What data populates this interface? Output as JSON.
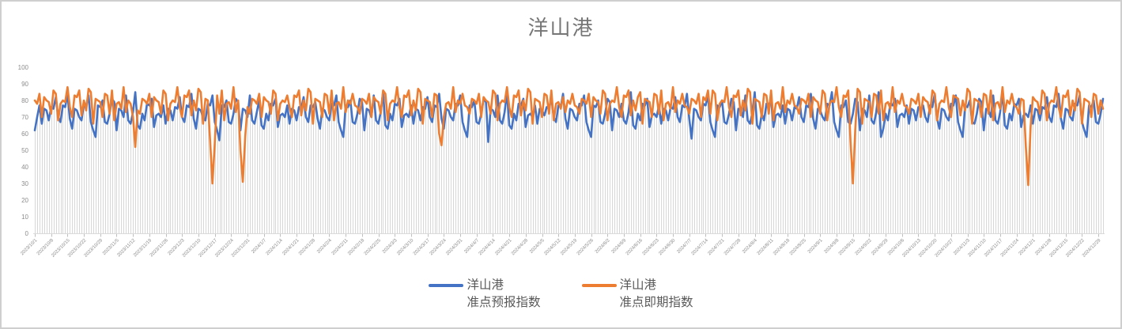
{
  "chart_data": {
    "type": "line",
    "title": "洋山港",
    "ylim": [
      0,
      100
    ],
    "y_ticks": [
      0,
      10,
      20,
      30,
      40,
      50,
      60,
      70,
      80,
      90,
      100
    ],
    "x_label_every_n_points": 7,
    "x_labels": [
      "2023/10/1",
      "2023/10/8",
      "2023/10/15",
      "2023/10/22",
      "2023/10/29",
      "2023/11/5",
      "2023/11/12",
      "2023/11/19",
      "2023/11/26",
      "2023/12/3",
      "2023/12/10",
      "2023/12/17",
      "2023/12/24",
      "2023/12/31",
      "2024/1/7",
      "2024/1/14",
      "2024/1/21",
      "2024/1/28",
      "2024/2/4",
      "2024/2/11",
      "2024/2/18",
      "2024/2/25",
      "2024/3/3",
      "2024/3/10",
      "2024/3/17",
      "2024/3/24",
      "2024/3/31",
      "2024/4/7",
      "2024/4/14",
      "2024/4/21",
      "2024/4/28",
      "2024/5/5",
      "2024/5/12",
      "2024/5/19",
      "2024/5/26",
      "2024/6/2",
      "2024/6/9",
      "2024/6/16",
      "2024/6/23",
      "2024/6/30",
      "2024/7/7",
      "2024/7/14",
      "2024/7/21",
      "2024/7/28",
      "2024/8/4",
      "2024/8/11",
      "2024/8/18",
      "2024/8/25",
      "2024/9/1",
      "2024/9/8",
      "2024/9/15",
      "2024/9/22",
      "2024/9/29",
      "2024/10/6",
      "2024/10/13",
      "2024/10/20",
      "2024/10/27",
      "2024/11/3",
      "2024/11/10",
      "2024/11/17",
      "2024/11/24",
      "2024/12/1",
      "2024/12/8",
      "2024/12/15",
      "2024/12/22",
      "2024/12/29"
    ],
    "grid": "vertical-droplines-per-day",
    "legend_position": "bottom",
    "series": [
      {
        "name": "洋山港 准点预报指数",
        "color": "#4472C4",
        "values": [
          62,
          70,
          77,
          66,
          75,
          74,
          68,
          76,
          75,
          82,
          70,
          67,
          77,
          76,
          84,
          69,
          63,
          75,
          74,
          70,
          68,
          78,
          77,
          83,
          67,
          62,
          58,
          77,
          76,
          80,
          67,
          66,
          72,
          81,
          79,
          62,
          75,
          74,
          70,
          83,
          68,
          66,
          73,
          85,
          65,
          63,
          72,
          68,
          78,
          77,
          81,
          64,
          71,
          72,
          70,
          77,
          66,
          75,
          74,
          68,
          76,
          75,
          82,
          70,
          67,
          77,
          76,
          84,
          69,
          63,
          75,
          74,
          70,
          68,
          78,
          77,
          83,
          67,
          62,
          56,
          77,
          76,
          80,
          67,
          66,
          72,
          81,
          79,
          62,
          75,
          74,
          70,
          83,
          68,
          66,
          73,
          80,
          65,
          63,
          72,
          68,
          78,
          77,
          81,
          64,
          71,
          72,
          70,
          77,
          66,
          75,
          74,
          68,
          76,
          75,
          82,
          70,
          67,
          77,
          76,
          79,
          69,
          63,
          75,
          74,
          70,
          68,
          78,
          77,
          83,
          67,
          62,
          58,
          77,
          76,
          80,
          67,
          66,
          72,
          81,
          79,
          62,
          75,
          74,
          70,
          83,
          68,
          66,
          73,
          85,
          65,
          63,
          72,
          68,
          78,
          77,
          81,
          64,
          71,
          72,
          70,
          77,
          66,
          75,
          74,
          68,
          76,
          75,
          82,
          70,
          67,
          77,
          76,
          84,
          69,
          63,
          75,
          74,
          70,
          68,
          78,
          77,
          83,
          67,
          62,
          58,
          77,
          76,
          80,
          67,
          66,
          72,
          81,
          79,
          55,
          75,
          74,
          70,
          83,
          68,
          66,
          73,
          85,
          65,
          63,
          72,
          68,
          78,
          77,
          81,
          64,
          71,
          72,
          70,
          77,
          66,
          75,
          74,
          71,
          76,
          75,
          82,
          70,
          67,
          77,
          76,
          84,
          69,
          63,
          75,
          74,
          70,
          68,
          78,
          77,
          83,
          67,
          62,
          58,
          77,
          76,
          80,
          67,
          66,
          72,
          81,
          79,
          62,
          75,
          74,
          70,
          78,
          68,
          66,
          73,
          85,
          65,
          63,
          72,
          68,
          78,
          77,
          81,
          64,
          71,
          72,
          70,
          77,
          66,
          75,
          74,
          68,
          76,
          75,
          82,
          70,
          67,
          77,
          76,
          84,
          69,
          57,
          75,
          74,
          70,
          68,
          78,
          77,
          83,
          67,
          62,
          58,
          77,
          76,
          80,
          67,
          66,
          72,
          81,
          79,
          62,
          75,
          74,
          70,
          83,
          68,
          66,
          73,
          85,
          65,
          63,
          72,
          68,
          78,
          77,
          81,
          64,
          71,
          72,
          70,
          77,
          66,
          75,
          74,
          68,
          76,
          75,
          82,
          70,
          67,
          77,
          76,
          84,
          69,
          63,
          75,
          74,
          70,
          68,
          78,
          77,
          85,
          67,
          62,
          58,
          77,
          76,
          80,
          67,
          66,
          72,
          81,
          79,
          62,
          75,
          74,
          70,
          83,
          68,
          66,
          73,
          85,
          58,
          63,
          72,
          68,
          78,
          77,
          81,
          64,
          71,
          72,
          70,
          77,
          66,
          75,
          74,
          68,
          76,
          75,
          77,
          70,
          67,
          77,
          76,
          84,
          69,
          63,
          75,
          74,
          70,
          68,
          78,
          77,
          83,
          67,
          62,
          58,
          77,
          76,
          80,
          67,
          66,
          72,
          81,
          79,
          62,
          75,
          74,
          70,
          83,
          68,
          66,
          73,
          85,
          65,
          63,
          72,
          68,
          78,
          77,
          81,
          64,
          71,
          72,
          70,
          77,
          66,
          75,
          74,
          68,
          76,
          75,
          82,
          70,
          67,
          77,
          76,
          84,
          69,
          63,
          75,
          74,
          70,
          68,
          78,
          77,
          83,
          67,
          62,
          58,
          77,
          76,
          80,
          67,
          66,
          72,
          81
        ]
      },
      {
        "name": "洋山港 准点即期指数",
        "color": "#ED7D31",
        "values": [
          80,
          78,
          84,
          70,
          82,
          80,
          79,
          72,
          86,
          84,
          68,
          78,
          80,
          79,
          88,
          76,
          70,
          83,
          82,
          86,
          71,
          80,
          74,
          87,
          85,
          66,
          81,
          80,
          79,
          70,
          84,
          83,
          72,
          86,
          68,
          78,
          79,
          75,
          88,
          73,
          80,
          78,
          70,
          52,
          74,
          72,
          81,
          80,
          78,
          84,
          70,
          82,
          80,
          79,
          72,
          86,
          84,
          68,
          78,
          80,
          79,
          88,
          76,
          70,
          83,
          82,
          86,
          71,
          80,
          74,
          87,
          85,
          66,
          81,
          80,
          56,
          30,
          54,
          83,
          72,
          86,
          68,
          78,
          79,
          75,
          88,
          73,
          80,
          50,
          31,
          58,
          76,
          72,
          81,
          80,
          78,
          84,
          70,
          82,
          80,
          79,
          72,
          86,
          84,
          68,
          78,
          80,
          79,
          83,
          76,
          70,
          83,
          82,
          86,
          71,
          80,
          74,
          87,
          85,
          66,
          81,
          80,
          79,
          70,
          84,
          83,
          72,
          86,
          68,
          78,
          79,
          75,
          88,
          73,
          80,
          78,
          84,
          77,
          76,
          72,
          81,
          80,
          78,
          84,
          70,
          82,
          80,
          79,
          72,
          86,
          84,
          68,
          78,
          80,
          79,
          88,
          76,
          70,
          83,
          82,
          86,
          71,
          80,
          74,
          87,
          85,
          66,
          81,
          80,
          79,
          70,
          84,
          83,
          60,
          53,
          70,
          78,
          79,
          75,
          88,
          73,
          80,
          78,
          84,
          77,
          76,
          72,
          81,
          80,
          78,
          84,
          70,
          82,
          80,
          79,
          72,
          86,
          84,
          68,
          78,
          80,
          79,
          88,
          76,
          70,
          83,
          82,
          86,
          71,
          80,
          74,
          87,
          85,
          66,
          81,
          80,
          79,
          70,
          84,
          83,
          72,
          86,
          68,
          78,
          79,
          75,
          82,
          73,
          80,
          78,
          84,
          77,
          76,
          72,
          81,
          80,
          78,
          84,
          70,
          82,
          80,
          79,
          72,
          86,
          84,
          68,
          78,
          80,
          79,
          88,
          76,
          70,
          83,
          82,
          86,
          71,
          80,
          74,
          82,
          85,
          66,
          81,
          80,
          79,
          70,
          84,
          83,
          72,
          86,
          68,
          78,
          79,
          75,
          88,
          73,
          80,
          78,
          84,
          77,
          76,
          72,
          81,
          80,
          78,
          84,
          70,
          82,
          80,
          86,
          72,
          86,
          84,
          68,
          78,
          80,
          79,
          88,
          76,
          70,
          83,
          82,
          86,
          71,
          80,
          74,
          87,
          85,
          66,
          81,
          80,
          79,
          70,
          84,
          83,
          72,
          86,
          68,
          78,
          79,
          75,
          88,
          73,
          80,
          78,
          84,
          77,
          76,
          72,
          81,
          80,
          78,
          84,
          70,
          82,
          80,
          79,
          72,
          86,
          84,
          68,
          78,
          80,
          79,
          88,
          76,
          70,
          83,
          82,
          86,
          55,
          30,
          62,
          87,
          85,
          66,
          81,
          80,
          79,
          70,
          84,
          83,
          72,
          86,
          68,
          78,
          79,
          75,
          88,
          73,
          80,
          78,
          84,
          77,
          76,
          72,
          81,
          80,
          78,
          84,
          70,
          82,
          80,
          79,
          72,
          86,
          84,
          68,
          78,
          80,
          79,
          88,
          76,
          70,
          83,
          82,
          81,
          71,
          80,
          74,
          87,
          85,
          66,
          81,
          80,
          79,
          70,
          84,
          83,
          72,
          86,
          68,
          78,
          79,
          75,
          88,
          73,
          80,
          78,
          84,
          77,
          76,
          72,
          81,
          80,
          52,
          29,
          64,
          82,
          80,
          79,
          72,
          86,
          84,
          68,
          78,
          80,
          79,
          88,
          76,
          70,
          83,
          82,
          86,
          71,
          80,
          74,
          87,
          85,
          66,
          81,
          80,
          79,
          70,
          84,
          83,
          72,
          80,
          75
        ]
      }
    ]
  },
  "legend": {
    "items": [
      {
        "line1": "洋山港",
        "line2": "准点预报指数",
        "color": "#4472C4"
      },
      {
        "line1": "洋山港",
        "line2": "准点即期指数",
        "color": "#ED7D31"
      }
    ]
  },
  "colors": {
    "title": "#767676",
    "axis_labels": "#8C8C8C",
    "legend_text": "#595959",
    "dropline": "#D7D7D7",
    "axis_line": "#D9D9D9",
    "tick": "#BFBFBF",
    "frame_border": "#CFCFCF",
    "background": "#FFFFFF"
  }
}
